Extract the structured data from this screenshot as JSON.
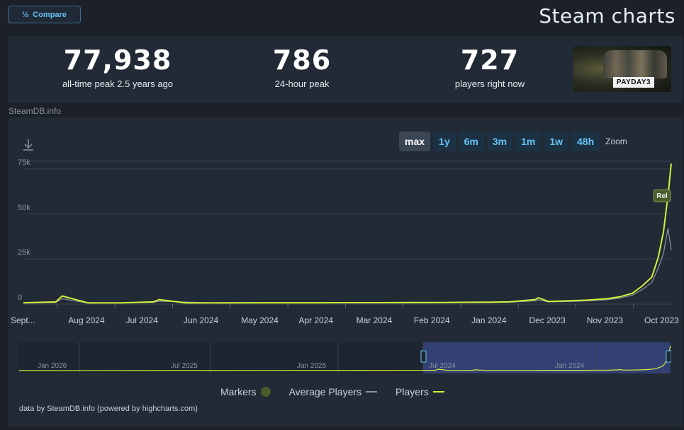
{
  "header": {
    "compare_label": "Compare",
    "compare_icon": "compare-icon",
    "title": "Steam charts"
  },
  "stats": {
    "now_value": "727",
    "now_label": "players right now",
    "peak24_value": "786",
    "peak24_label": "24-hour peak",
    "alltime_value": "77,938",
    "alltime_label": "all-time peak 2.5 years ago"
  },
  "game": {
    "logo_text": "PAYDAY3"
  },
  "credit_top": "SteamDB.info",
  "zoom": {
    "label": "Zoom",
    "buttons": [
      "max",
      "1y",
      "6m",
      "3m",
      "1m",
      "1w",
      "48h"
    ],
    "active": "max"
  },
  "chart_data": {
    "type": "line",
    "y_ticks": [
      "75k",
      "50k",
      "25k",
      "0"
    ],
    "ylim": [
      0,
      80000
    ],
    "x_labels": [
      "Oct 2023",
      "Nov 2023",
      "Dec 2023",
      "Jan 2024",
      "Feb 2024",
      "Mar 2024",
      "Apr 2024",
      "May 2024",
      "Jun 2024",
      "Jul 2024",
      "Aug 2024",
      "Sept..."
    ],
    "x_direction": "right-to-left",
    "series": [
      {
        "name": "Players",
        "color": "#d4f03a",
        "points": [
          [
            0,
            77938
          ],
          [
            0.005,
            60000
          ],
          [
            0.012,
            40000
          ],
          [
            0.02,
            26000
          ],
          [
            0.03,
            15000
          ],
          [
            0.045,
            10000
          ],
          [
            0.06,
            6000
          ],
          [
            0.08,
            4000
          ],
          [
            0.1,
            3000
          ],
          [
            0.13,
            2200
          ],
          [
            0.16,
            1800
          ],
          [
            0.19,
            1500
          ],
          [
            0.205,
            3500
          ],
          [
            0.21,
            2500
          ],
          [
            0.25,
            1300
          ],
          [
            0.28,
            1100
          ],
          [
            0.31,
            1000
          ],
          [
            0.35,
            900
          ],
          [
            0.4,
            850
          ],
          [
            0.45,
            800
          ],
          [
            0.5,
            780
          ],
          [
            0.55,
            760
          ],
          [
            0.6,
            740
          ],
          [
            0.65,
            730
          ],
          [
            0.7,
            720
          ],
          [
            0.75,
            700
          ],
          [
            0.79,
            2500
          ],
          [
            0.8,
            1200
          ],
          [
            0.85,
            700
          ],
          [
            0.9,
            650
          ],
          [
            0.94,
            4500
          ],
          [
            0.95,
            1200
          ],
          [
            1.0,
            727
          ]
        ]
      },
      {
        "name": "Average Players",
        "color": "#8b949e",
        "points": [
          [
            0,
            30000
          ],
          [
            0.005,
            42000
          ],
          [
            0.012,
            28000
          ],
          [
            0.02,
            20000
          ],
          [
            0.03,
            12000
          ],
          [
            0.045,
            8000
          ],
          [
            0.06,
            5000
          ],
          [
            0.08,
            3200
          ],
          [
            0.1,
            2400
          ],
          [
            0.13,
            1800
          ],
          [
            0.16,
            1400
          ],
          [
            0.19,
            1200
          ],
          [
            0.205,
            2400
          ],
          [
            0.21,
            1800
          ],
          [
            0.25,
            1000
          ],
          [
            0.3,
            850
          ],
          [
            0.4,
            700
          ],
          [
            0.5,
            650
          ],
          [
            0.6,
            620
          ],
          [
            0.7,
            600
          ],
          [
            0.79,
            1600
          ],
          [
            0.8,
            900
          ],
          [
            0.9,
            550
          ],
          [
            0.94,
            3000
          ],
          [
            0.95,
            900
          ],
          [
            1.0,
            600
          ]
        ]
      }
    ],
    "annotation": "Rel",
    "navigator_labels": [
      "Jan 2024",
      "Jul 2024",
      "Jan 2025",
      "Jul 2025",
      "Jan 2026"
    ]
  },
  "legend": {
    "players": "Players",
    "average": "Average Players",
    "markers": "Markers",
    "players_color": "#d4f03a",
    "average_color": "#8b949e",
    "markers_color": "#4b5a2b"
  },
  "credit_bottom": "data by SteamDB.info (powered by highcharts.com)"
}
